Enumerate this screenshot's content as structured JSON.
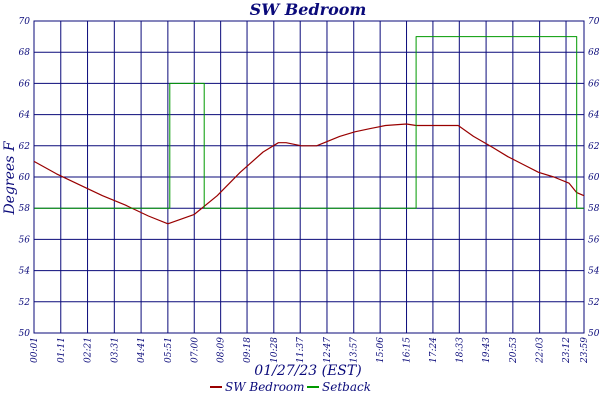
{
  "chart_data": {
    "type": "line",
    "title": "SW Bedroom",
    "xlabel": "01/27/23 (EST)",
    "ylabel": "Degrees F",
    "ylim": [
      50,
      70
    ],
    "y_ticks": [
      50,
      52,
      54,
      56,
      58,
      60,
      62,
      64,
      66,
      68,
      70
    ],
    "x_tick_labels": [
      "00:01",
      "01:11",
      "02:21",
      "03:31",
      "04:41",
      "05:51",
      "07:00",
      "08:09",
      "09:18",
      "10:28",
      "11:37",
      "12:47",
      "13:57",
      "15:06",
      "16:15",
      "17:24",
      "18:33",
      "19:43",
      "20:53",
      "22:03",
      "23:12",
      "23:59"
    ],
    "x_unit": "minutes since 00:00",
    "x_ticks": [
      1,
      71,
      141,
      211,
      281,
      351,
      420,
      489,
      558,
      628,
      697,
      767,
      837,
      906,
      975,
      1044,
      1113,
      1183,
      1253,
      1323,
      1392,
      1439
    ],
    "xlim": [
      1,
      1439
    ],
    "grid": true,
    "legend": "bottom",
    "series": [
      {
        "name": "SW Bedroom",
        "color": "#990000",
        "style": "line",
        "x": [
          1,
          60,
          120,
          180,
          240,
          300,
          351,
          420,
          480,
          540,
          600,
          640,
          660,
          700,
          740,
          760,
          800,
          840,
          880,
          920,
          975,
          1000,
          1040,
          1080,
          1110,
          1150,
          1200,
          1240,
          1280,
          1320,
          1360,
          1400,
          1420,
          1439
        ],
        "values": [
          61.0,
          60.2,
          59.5,
          58.8,
          58.2,
          57.5,
          57.0,
          57.6,
          58.8,
          60.3,
          61.6,
          62.2,
          62.2,
          62.0,
          62.0,
          62.2,
          62.6,
          62.9,
          63.1,
          63.3,
          63.4,
          63.3,
          63.3,
          63.3,
          63.3,
          62.6,
          61.9,
          61.3,
          60.8,
          60.3,
          60.0,
          59.6,
          59.0,
          58.8
        ]
      },
      {
        "name": "Setback",
        "color": "#009900",
        "style": "step",
        "x": [
          1,
          356,
          356,
          446,
          446,
          1000,
          1000,
          1420,
          1420,
          1439
        ],
        "values": [
          58,
          58,
          66,
          66,
          58,
          58,
          69,
          69,
          58,
          58
        ]
      }
    ]
  }
}
